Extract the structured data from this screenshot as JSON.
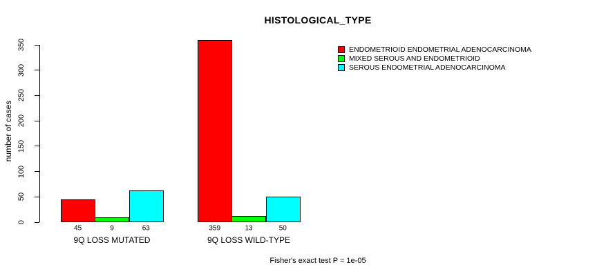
{
  "title": "HISTOLOGICAL_TYPE",
  "footer": "Fisher's exact test P = 1e-05",
  "colors": {
    "background": "#ffffff",
    "axis": "#000000",
    "red": "#ff0000",
    "green": "#00ff00",
    "cyan": "#00ffff"
  },
  "chart_data": {
    "type": "bar",
    "title": "HISTOLOGICAL_TYPE",
    "xlabel": "",
    "ylabel": "number of cases",
    "categories": [
      "9Q LOSS MUTATED",
      "9Q LOSS WILD-TYPE"
    ],
    "series": [
      {
        "name": "ENDOMETRIOID ENDOMETRIAL ADENOCARCINOMA",
        "color": "#ff0000",
        "values": [
          45,
          359
        ]
      },
      {
        "name": "MIXED SEROUS AND ENDOMETRIOID",
        "color": "#00ff00",
        "values": [
          9,
          13
        ]
      },
      {
        "name": "SEROUS ENDOMETRIAL ADENOCARCINOMA",
        "color": "#00ffff",
        "values": [
          63,
          50
        ]
      }
    ],
    "bar_value_labels": [
      [
        45,
        9,
        63
      ],
      [
        359,
        13,
        50
      ]
    ],
    "y_ticks": [
      0,
      50,
      100,
      150,
      200,
      250,
      300,
      350
    ],
    "ylim": [
      0,
      350
    ],
    "grid": false,
    "legend_position": "top-right",
    "grouped": true,
    "annotation": "Fisher's exact test P = 1e-05"
  }
}
